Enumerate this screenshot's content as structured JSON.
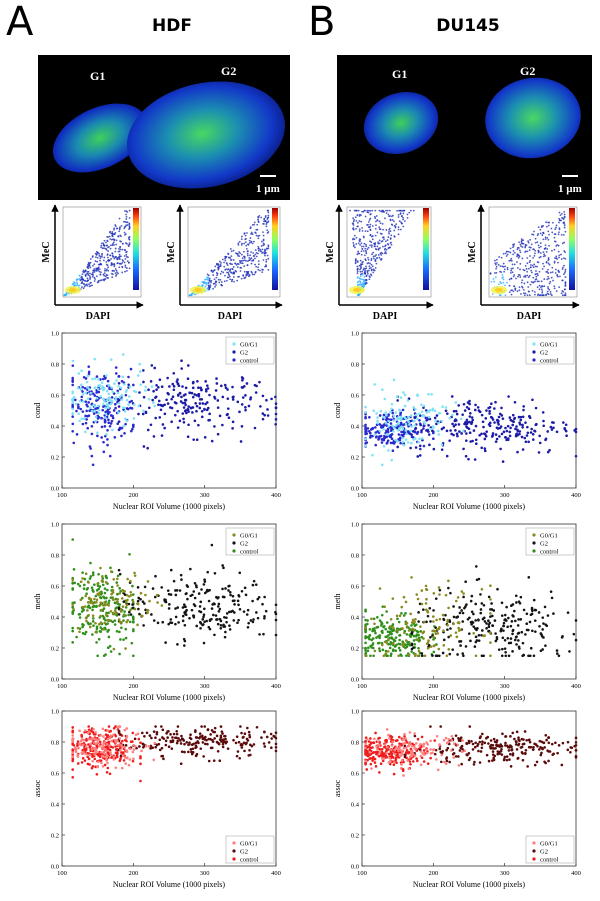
{
  "panels": [
    {
      "letter": "A",
      "title": "HDF",
      "micro_labels": [
        "G1",
        "G2"
      ],
      "scale_bar": "1 µm",
      "density_axes": {
        "y": "MeC",
        "x": "DAPI"
      }
    },
    {
      "letter": "B",
      "title": "DU145",
      "micro_labels": [
        "G1",
        "G2"
      ],
      "scale_bar": "1 µm",
      "density_axes": {
        "y": "MeC",
        "x": "DAPI"
      }
    }
  ],
  "colors": {
    "cond": [
      "#7fe3f5",
      "#1b1ba8",
      "#2a2ad0"
    ],
    "meth": [
      "#8a8a1f",
      "#141414",
      "#2f8f1a"
    ],
    "assoc": [
      "#ff8080",
      "#5a0a0a",
      "#ee1c1c"
    ]
  },
  "chart_data": [
    {
      "id": "A-cond",
      "type": "scatter",
      "ylabel": "cond",
      "xlabel": "Nuclear ROI Volume (1000 pixels)",
      "xlim": [
        100,
        400
      ],
      "ylim": [
        0.0,
        1.0
      ],
      "xticks": [
        "100",
        "200",
        "300",
        "400"
      ],
      "yticks": [
        "0.0",
        "0.2",
        "0.4",
        "0.6",
        "0.8",
        "1.0"
      ],
      "legend_position": "top-right",
      "series": [
        {
          "name": "G0/G1",
          "center": [
            160,
            0.57
          ],
          "spread": [
            30,
            0.1
          ],
          "x_range": [
            115,
            230
          ],
          "count": 130
        },
        {
          "name": "G2",
          "center": [
            290,
            0.55
          ],
          "spread": [
            55,
            0.1
          ],
          "x_range": [
            180,
            400
          ],
          "count": 230
        },
        {
          "name": "control",
          "center": [
            155,
            0.52
          ],
          "spread": [
            25,
            0.12
          ],
          "x_range": [
            115,
            200
          ],
          "count": 200
        }
      ]
    },
    {
      "id": "B-cond",
      "type": "scatter",
      "ylabel": "cond",
      "xlabel": "Nuclear ROI Volume (1000 pixels)",
      "xlim": [
        100,
        400
      ],
      "ylim": [
        0.0,
        1.0
      ],
      "xticks": [
        "100",
        "200",
        "300",
        "400"
      ],
      "yticks": [
        "0.0",
        "0.2",
        "0.4",
        "0.6",
        "0.8",
        "1.0"
      ],
      "legend_position": "top-right",
      "series": [
        {
          "name": "G0/G1",
          "center": [
            160,
            0.45
          ],
          "spread": [
            30,
            0.1
          ],
          "x_range": [
            105,
            260
          ],
          "count": 130
        },
        {
          "name": "G2",
          "center": [
            280,
            0.4
          ],
          "spread": [
            60,
            0.09
          ],
          "x_range": [
            150,
            400
          ],
          "count": 260
        },
        {
          "name": "control",
          "center": [
            140,
            0.38
          ],
          "spread": [
            25,
            0.06
          ],
          "x_range": [
            105,
            200
          ],
          "count": 190
        }
      ]
    },
    {
      "id": "A-meth",
      "type": "scatter",
      "ylabel": "meth",
      "xlabel": "Nuclear ROI Volume (1000 pixels)",
      "xlim": [
        100,
        400
      ],
      "ylim": [
        0.0,
        1.0
      ],
      "xticks": [
        "100",
        "200",
        "300",
        "400"
      ],
      "yticks": [
        "0.0",
        "0.2",
        "0.4",
        "0.6",
        "0.8",
        "1.0"
      ],
      "legend_position": "top-right",
      "series": [
        {
          "name": "G0/G1",
          "center": [
            170,
            0.5
          ],
          "spread": [
            30,
            0.1
          ],
          "x_range": [
            115,
            240
          ],
          "count": 120
        },
        {
          "name": "G2",
          "center": [
            290,
            0.47
          ],
          "spread": [
            55,
            0.11
          ],
          "x_range": [
            180,
            400
          ],
          "count": 230
        },
        {
          "name": "control",
          "center": [
            155,
            0.45
          ],
          "spread": [
            25,
            0.13
          ],
          "x_range": [
            115,
            200
          ],
          "count": 220
        }
      ]
    },
    {
      "id": "B-meth",
      "type": "scatter",
      "ylabel": "meth",
      "xlabel": "Nuclear ROI Volume (1000 pixels)",
      "xlim": [
        100,
        400
      ],
      "ylim": [
        0.0,
        1.0
      ],
      "xticks": [
        "100",
        "200",
        "300",
        "400"
      ],
      "yticks": [
        "0.0",
        "0.2",
        "0.4",
        "0.6",
        "0.8",
        "1.0"
      ],
      "legend_position": "top-right",
      "series": [
        {
          "name": "G0/G1",
          "center": [
            190,
            0.35
          ],
          "spread": [
            40,
            0.12
          ],
          "x_range": [
            105,
            280
          ],
          "count": 130
        },
        {
          "name": "G2",
          "center": [
            285,
            0.33
          ],
          "spread": [
            60,
            0.12
          ],
          "x_range": [
            170,
            400
          ],
          "count": 250
        },
        {
          "name": "control",
          "center": [
            140,
            0.27
          ],
          "spread": [
            25,
            0.08
          ],
          "x_range": [
            105,
            210
          ],
          "count": 200
        }
      ]
    },
    {
      "id": "A-assoc",
      "type": "scatter",
      "ylabel": "assoc",
      "xlabel": "Nuclear ROI Volume (1000 pixels)",
      "xlim": [
        100,
        400
      ],
      "ylim": [
        0.0,
        1.0
      ],
      "xticks": [
        "100",
        "200",
        "300",
        "400"
      ],
      "yticks": [
        "0.0",
        "0.2",
        "0.4",
        "0.6",
        "0.8",
        "1.0"
      ],
      "legend_position": "bottom-right",
      "series": [
        {
          "name": "G0/G1",
          "center": [
            160,
            0.77
          ],
          "spread": [
            30,
            0.06
          ],
          "x_range": [
            115,
            230
          ],
          "count": 130
        },
        {
          "name": "G2",
          "center": [
            290,
            0.8
          ],
          "spread": [
            55,
            0.05
          ],
          "x_range": [
            180,
            400
          ],
          "count": 220
        },
        {
          "name": "control",
          "center": [
            155,
            0.76
          ],
          "spread": [
            25,
            0.07
          ],
          "x_range": [
            115,
            210
          ],
          "count": 230
        }
      ]
    },
    {
      "id": "B-assoc",
      "type": "scatter",
      "ylabel": "assoc",
      "xlabel": "Nuclear ROI Volume (1000 pixels)",
      "xlim": [
        100,
        400
      ],
      "ylim": [
        0.0,
        1.0
      ],
      "xticks": [
        "100",
        "200",
        "300",
        "400"
      ],
      "yticks": [
        "0.0",
        "0.2",
        "0.4",
        "0.6",
        "0.8",
        "1.0"
      ],
      "legend_position": "bottom-right",
      "series": [
        {
          "name": "G0/G1",
          "center": [
            170,
            0.75
          ],
          "spread": [
            35,
            0.05
          ],
          "x_range": [
            105,
            260
          ],
          "count": 120
        },
        {
          "name": "G2",
          "center": [
            285,
            0.76
          ],
          "spread": [
            60,
            0.05
          ],
          "x_range": [
            160,
            400
          ],
          "count": 230
        },
        {
          "name": "control",
          "center": [
            140,
            0.74
          ],
          "spread": [
            25,
            0.05
          ],
          "x_range": [
            105,
            210
          ],
          "count": 220
        }
      ]
    }
  ]
}
